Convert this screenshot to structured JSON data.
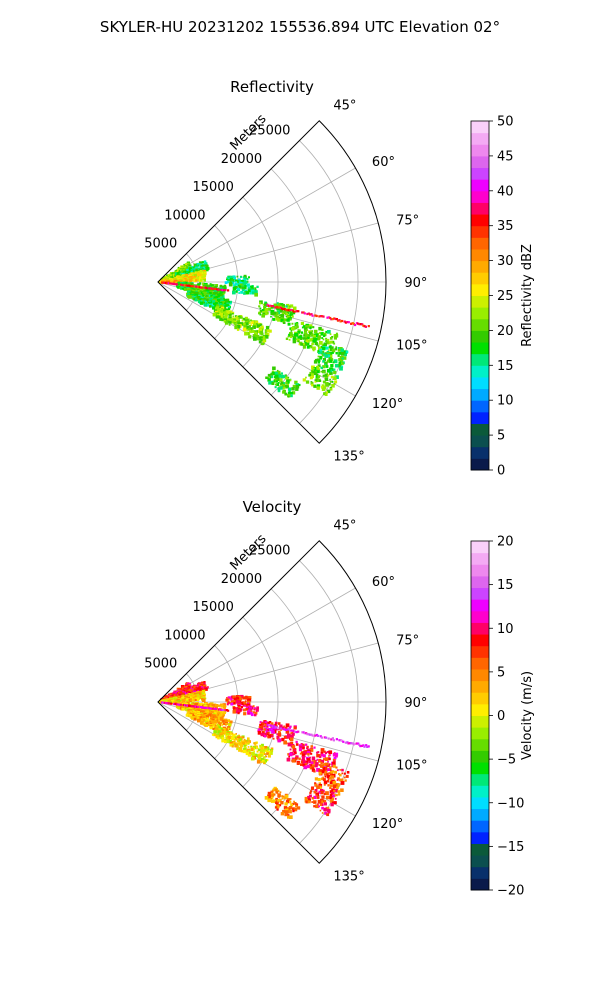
{
  "figure": {
    "suptitle": "SKYLER-HU  20231202  155536.894 UTC Elevation 02°"
  },
  "chart_data": [
    {
      "type": "heatmap",
      "projection": "polar-sector",
      "title": "Reflectivity",
      "radial_axis_label": "Meters",
      "radial_ticks": [
        "5000",
        "10000",
        "15000",
        "20000",
        "25000"
      ],
      "radial_tick_values": [
        5000,
        10000,
        15000,
        20000,
        25000
      ],
      "radial_range": [
        0,
        28500
      ],
      "azimuth_range_deg": [
        45,
        135
      ],
      "azimuth_ticks": [
        "45°",
        "60°",
        "75°",
        "90°",
        "105°",
        "120°",
        "135°"
      ],
      "azimuth_tick_values": [
        45,
        60,
        75,
        90,
        105,
        120,
        135
      ],
      "grid": true,
      "colorbar": {
        "label": "Reflectivity dBZ",
        "range": [
          0,
          50
        ],
        "ticks": [
          "0",
          "5",
          "10",
          "15",
          "20",
          "25",
          "30",
          "35",
          "40",
          "45",
          "50"
        ],
        "tick_values": [
          0,
          5,
          10,
          15,
          20,
          25,
          30,
          35,
          40,
          45,
          50
        ],
        "colormap": [
          "#0a1a4a",
          "#08306b",
          "#0b4f4f",
          "#0b5a3a",
          "#0022ff",
          "#0066ff",
          "#00aaff",
          "#00ddff",
          "#00f0c8",
          "#00e878",
          "#00e000",
          "#33cc00",
          "#66dd00",
          "#99ee00",
          "#ccf000",
          "#ffee00",
          "#ffcc00",
          "#ffaa00",
          "#ff8800",
          "#ff6600",
          "#ff3300",
          "#ff0000",
          "#ff0066",
          "#ff00cc",
          "#ee00ff",
          "#cc44ff",
          "#dd66ee",
          "#ee88ee",
          "#f4aaf4",
          "#fad0fa"
        ]
      },
      "echo_regions": [
        {
          "az": [
            58,
            72
          ],
          "range": [
            500,
            4500
          ],
          "value": 22
        },
        {
          "az": [
            66,
            76
          ],
          "range": [
            2500,
            6500
          ],
          "value": 17
        },
        {
          "az": [
            76,
            88
          ],
          "range": [
            300,
            6000
          ],
          "value": 26
        },
        {
          "az": [
            88,
            94
          ],
          "range": [
            500,
            2800
          ],
          "value": 30
        },
        {
          "az": [
            92,
            106
          ],
          "range": [
            2500,
            8500
          ],
          "value": 19
        },
        {
          "az": [
            104,
            116
          ],
          "range": [
            4000,
            9500
          ],
          "value": 18
        },
        {
          "az": [
            112,
            121
          ],
          "range": [
            8000,
            15500
          ],
          "value": 22
        },
        {
          "az": [
            86,
            92
          ],
          "range": [
            8500,
            11500
          ],
          "value": 16
        },
        {
          "az": [
            92,
            98
          ],
          "range": [
            9500,
            12500
          ],
          "value": 17
        },
        {
          "az": [
            100,
            108
          ],
          "range": [
            13000,
            17500
          ],
          "value": 20
        },
        {
          "az": [
            106,
            114
          ],
          "range": [
            17500,
            23500
          ],
          "value": 20
        },
        {
          "az": [
            110,
            118
          ],
          "range": [
            22000,
            25500
          ],
          "value": 18
        },
        {
          "az": [
            118,
            124
          ],
          "range": [
            22000,
            25500
          ],
          "value": 21
        },
        {
          "az": [
            126,
            132
          ],
          "range": [
            18000,
            22000
          ],
          "value": 19
        }
      ],
      "radial_lines": [
        {
          "az": 97,
          "range": [
            500,
            9000
          ],
          "value": 36
        },
        {
          "az": 102,
          "range": [
            14000,
            27000
          ],
          "value": 36
        }
      ]
    },
    {
      "type": "heatmap",
      "projection": "polar-sector",
      "title": "Velocity",
      "radial_axis_label": "Meters",
      "radial_ticks": [
        "5000",
        "10000",
        "15000",
        "20000",
        "25000"
      ],
      "radial_tick_values": [
        5000,
        10000,
        15000,
        20000,
        25000
      ],
      "radial_range": [
        0,
        28500
      ],
      "azimuth_range_deg": [
        45,
        135
      ],
      "azimuth_ticks": [
        "45°",
        "60°",
        "75°",
        "90°",
        "105°",
        "120°",
        "135°"
      ],
      "azimuth_tick_values": [
        45,
        60,
        75,
        90,
        105,
        120,
        135
      ],
      "grid": true,
      "colorbar": {
        "label": "Velocity (m/s)",
        "range": [
          -20,
          20
        ],
        "ticks": [
          "−20",
          "−15",
          "−10",
          "−5",
          "0",
          "5",
          "10",
          "15",
          "20"
        ],
        "tick_values": [
          -20,
          -15,
          -10,
          -5,
          0,
          5,
          10,
          15,
          20
        ],
        "colormap": [
          "#0a1a4a",
          "#08306b",
          "#0b4f4f",
          "#0b5a3a",
          "#0022ff",
          "#0066ff",
          "#00aaff",
          "#00ddff",
          "#00f0c8",
          "#00e878",
          "#00e000",
          "#33cc00",
          "#66dd00",
          "#99ee00",
          "#ccf000",
          "#ffee00",
          "#ffcc00",
          "#ffaa00",
          "#ff8800",
          "#ff6600",
          "#ff3300",
          "#ff0000",
          "#ff0066",
          "#ff00cc",
          "#ee00ff",
          "#cc44ff",
          "#dd66ee",
          "#ee88ee",
          "#f4aaf4",
          "#fad0fa"
        ]
      },
      "echo_regions": [
        {
          "az": [
            58,
            72
          ],
          "range": [
            500,
            4500
          ],
          "value": 8
        },
        {
          "az": [
            66,
            76
          ],
          "range": [
            2500,
            6500
          ],
          "value": 9
        },
        {
          "az": [
            76,
            88
          ],
          "range": [
            300,
            6000
          ],
          "value": 2
        },
        {
          "az": [
            88,
            94
          ],
          "range": [
            500,
            2800
          ],
          "value": 1
        },
        {
          "az": [
            92,
            106
          ],
          "range": [
            2500,
            8500
          ],
          "value": 3
        },
        {
          "az": [
            104,
            116
          ],
          "range": [
            4000,
            9500
          ],
          "value": 3
        },
        {
          "az": [
            112,
            121
          ],
          "range": [
            8000,
            15500
          ],
          "value": 1
        },
        {
          "az": [
            86,
            92
          ],
          "range": [
            8500,
            11500
          ],
          "value": 9
        },
        {
          "az": [
            92,
            98
          ],
          "range": [
            9500,
            12500
          ],
          "value": 9
        },
        {
          "az": [
            100,
            108
          ],
          "range": [
            13000,
            17500
          ],
          "value": 9
        },
        {
          "az": [
            106,
            114
          ],
          "range": [
            17500,
            23500
          ],
          "value": 9
        },
        {
          "az": [
            110,
            118
          ],
          "range": [
            22000,
            25500
          ],
          "value": 6
        },
        {
          "az": [
            118,
            124
          ],
          "range": [
            22000,
            25500
          ],
          "value": 8
        },
        {
          "az": [
            126,
            132
          ],
          "range": [
            18000,
            22000
          ],
          "value": 5
        }
      ],
      "radial_lines": [
        {
          "az": 97,
          "range": [
            500,
            9000
          ],
          "value": 11
        },
        {
          "az": 102,
          "range": [
            14000,
            27000
          ],
          "value": 14
        }
      ]
    }
  ]
}
